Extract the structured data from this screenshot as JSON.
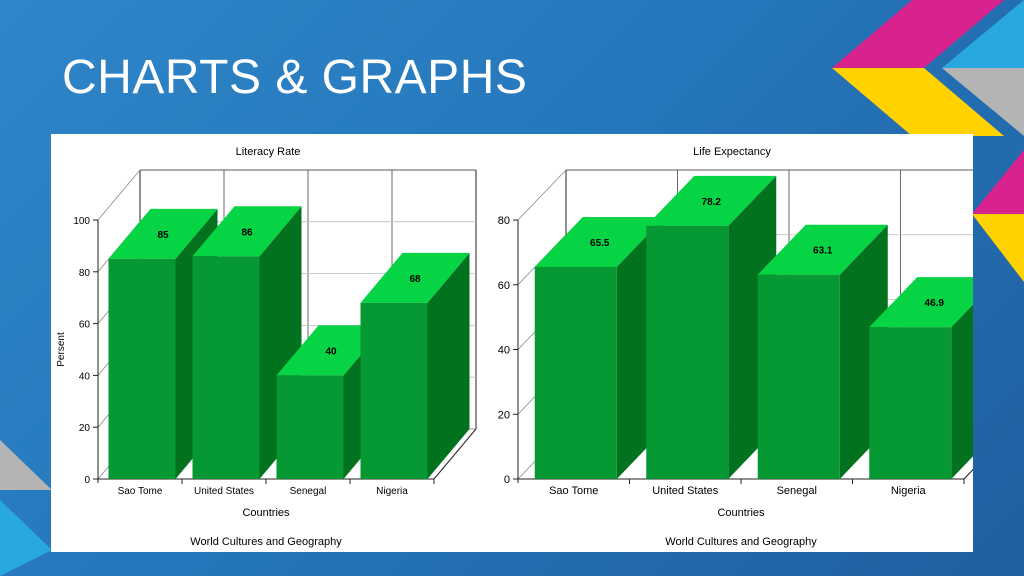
{
  "slide": {
    "title": "CHARTS & GRAPHS"
  },
  "colors": {
    "background": "#2a7fc4",
    "bar_front": "#059833",
    "bar_top": "#06d444",
    "bar_side": "#03721f",
    "deco_magenta": "#d8238f",
    "deco_yellow": "#ffd200",
    "deco_gray": "#b4b4b4",
    "deco_cyan": "#29a8e0"
  },
  "chart_data": [
    {
      "type": "bar",
      "title": "Literacy Rate",
      "categories": [
        "Sao Tome",
        "United States",
        "Senegal",
        "Nigeria"
      ],
      "values": [
        85,
        86,
        40,
        68
      ],
      "xlabel": "Countries",
      "ylabel": "Persent",
      "ylim": [
        0,
        100
      ],
      "yticks": [
        0,
        20,
        40,
        60,
        80,
        100
      ],
      "grid": true,
      "three_d": true,
      "footer": "World Cultures and Geography"
    },
    {
      "type": "bar",
      "title": "Life Expectancy",
      "categories": [
        "Sao Tome",
        "United States",
        "Senegal",
        "Nigeria"
      ],
      "values": [
        65.5,
        78.2,
        63.1,
        46.9
      ],
      "xlabel": "Countries",
      "ylabel": "",
      "ylim": [
        0,
        80
      ],
      "yticks": [
        0,
        20,
        40,
        60,
        80
      ],
      "grid": true,
      "three_d": true,
      "footer": "World Cultures and Geography"
    }
  ]
}
